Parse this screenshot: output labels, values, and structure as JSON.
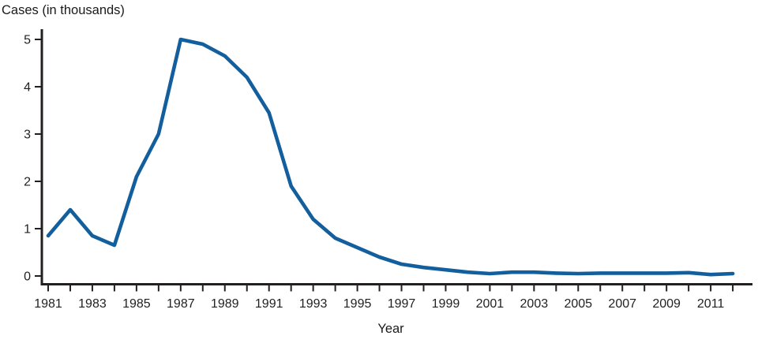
{
  "chart_data": {
    "type": "line",
    "title": "Cases (in thousands)",
    "xlabel": "Year",
    "ylabel": "Cases (in thousands)",
    "x": [
      1981,
      1982,
      1983,
      1984,
      1985,
      1986,
      1987,
      1988,
      1989,
      1990,
      1991,
      1992,
      1993,
      1994,
      1995,
      1996,
      1997,
      1998,
      1999,
      2000,
      2001,
      2002,
      2003,
      2004,
      2005,
      2006,
      2007,
      2008,
      2009,
      2010,
      2011,
      2012
    ],
    "values": [
      0.85,
      1.4,
      0.85,
      0.65,
      2.1,
      3.0,
      5.0,
      4.9,
      4.65,
      4.2,
      3.45,
      1.9,
      1.2,
      0.8,
      0.6,
      0.4,
      0.25,
      0.18,
      0.13,
      0.08,
      0.05,
      0.08,
      0.08,
      0.06,
      0.05,
      0.06,
      0.06,
      0.06,
      0.06,
      0.07,
      0.03,
      0.05
    ],
    "ylim": [
      0,
      5
    ],
    "yticks": [
      0,
      1,
      2,
      3,
      4,
      5
    ],
    "xtick_minor_every_year": true,
    "xtick_labels": [
      "1981",
      "1983",
      "1985",
      "1987",
      "1989",
      "1991",
      "1993",
      "1995",
      "1997",
      "1999",
      "2001",
      "2003",
      "2005",
      "2007",
      "2009",
      "2011"
    ],
    "grid": false,
    "legend": "none",
    "line_color": "#135f9e",
    "axis_color": "#231f20",
    "text_color": "#231f20"
  }
}
